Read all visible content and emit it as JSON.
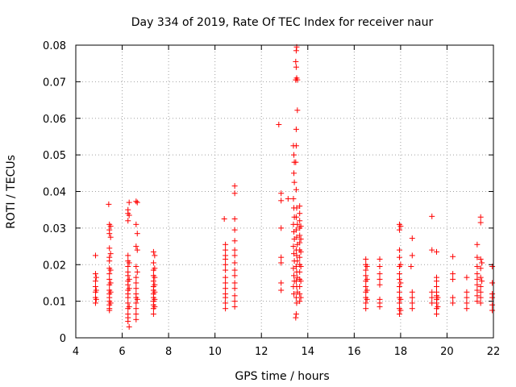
{
  "chart_data": {
    "type": "scatter",
    "title": "Day 334 of 2019, Rate Of TEC Index for receiver naur",
    "xlabel": "GPS time / hours",
    "ylabel": "ROTI / TECUs",
    "xlim": [
      4,
      22
    ],
    "ylim": [
      0,
      0.08
    ],
    "grid": true,
    "marker": "+",
    "marker_color": "#ff0000",
    "x_ticks": [
      4,
      6,
      8,
      10,
      12,
      14,
      16,
      18,
      20,
      22
    ],
    "x_tick_labels": [
      "4",
      "6",
      "8",
      "10",
      "12",
      "14",
      "16",
      "18",
      "20",
      "22"
    ],
    "y_ticks": [
      0,
      0.01,
      0.02,
      0.03,
      0.04,
      0.05,
      0.06,
      0.07,
      0.08
    ],
    "y_tick_labels": [
      "0",
      "0.01",
      "0.02",
      "0.03",
      "0.04",
      "0.05",
      "0.06",
      "0.07",
      "0.08"
    ],
    "series": [
      {
        "name": "ROTI",
        "points": [
          [
            4.85,
            0.0225
          ],
          [
            4.85,
            0.0175
          ],
          [
            4.85,
            0.0155
          ],
          [
            4.85,
            0.014
          ],
          [
            4.85,
            0.0125
          ],
          [
            4.85,
            0.011
          ],
          [
            4.85,
            0.0095
          ],
          [
            4.88,
            0.0165
          ],
          [
            4.88,
            0.013
          ],
          [
            4.88,
            0.0105
          ],
          [
            5.42,
            0.0365
          ],
          [
            5.45,
            0.031
          ],
          [
            5.45,
            0.0295
          ],
          [
            5.45,
            0.0285
          ],
          [
            5.45,
            0.0245
          ],
          [
            5.45,
            0.022
          ],
          [
            5.45,
            0.021
          ],
          [
            5.45,
            0.019
          ],
          [
            5.45,
            0.0175
          ],
          [
            5.45,
            0.016
          ],
          [
            5.45,
            0.0145
          ],
          [
            5.45,
            0.013
          ],
          [
            5.45,
            0.012
          ],
          [
            5.45,
            0.011
          ],
          [
            5.45,
            0.01
          ],
          [
            5.45,
            0.009
          ],
          [
            5.45,
            0.008
          ],
          [
            5.45,
            0.0075
          ],
          [
            5.5,
            0.0305
          ],
          [
            5.5,
            0.0275
          ],
          [
            5.5,
            0.023
          ],
          [
            5.5,
            0.0185
          ],
          [
            5.5,
            0.015
          ],
          [
            5.5,
            0.0125
          ],
          [
            5.5,
            0.0095
          ],
          [
            6.25,
            0.035
          ],
          [
            6.25,
            0.034
          ],
          [
            6.25,
            0.032
          ],
          [
            6.25,
            0.0225
          ],
          [
            6.25,
            0.021
          ],
          [
            6.25,
            0.0195
          ],
          [
            6.25,
            0.018
          ],
          [
            6.25,
            0.017
          ],
          [
            6.25,
            0.0155
          ],
          [
            6.25,
            0.0145
          ],
          [
            6.25,
            0.013
          ],
          [
            6.25,
            0.012
          ],
          [
            6.25,
            0.011
          ],
          [
            6.25,
            0.0095
          ],
          [
            6.25,
            0.008
          ],
          [
            6.25,
            0.0065
          ],
          [
            6.25,
            0.0055
          ],
          [
            6.25,
            0.0045
          ],
          [
            6.3,
            0.037
          ],
          [
            6.3,
            0.0335
          ],
          [
            6.3,
            0.0205
          ],
          [
            6.3,
            0.016
          ],
          [
            6.3,
            0.0135
          ],
          [
            6.3,
            0.0085
          ],
          [
            6.3,
            0.003
          ],
          [
            6.6,
            0.0373
          ],
          [
            6.65,
            0.037
          ],
          [
            6.6,
            0.031
          ],
          [
            6.6,
            0.025
          ],
          [
            6.6,
            0.0195
          ],
          [
            6.6,
            0.0165
          ],
          [
            6.6,
            0.015
          ],
          [
            6.6,
            0.0135
          ],
          [
            6.6,
            0.012
          ],
          [
            6.6,
            0.011
          ],
          [
            6.6,
            0.0095
          ],
          [
            6.6,
            0.008
          ],
          [
            6.6,
            0.0065
          ],
          [
            6.6,
            0.005
          ],
          [
            6.65,
            0.0285
          ],
          [
            6.65,
            0.024
          ],
          [
            6.65,
            0.018
          ],
          [
            6.65,
            0.0105
          ],
          [
            7.35,
            0.0235
          ],
          [
            7.35,
            0.0205
          ],
          [
            7.35,
            0.0185
          ],
          [
            7.35,
            0.017
          ],
          [
            7.35,
            0.0155
          ],
          [
            7.35,
            0.014
          ],
          [
            7.35,
            0.013
          ],
          [
            7.35,
            0.012
          ],
          [
            7.35,
            0.011
          ],
          [
            7.35,
            0.01
          ],
          [
            7.35,
            0.009
          ],
          [
            7.35,
            0.008
          ],
          [
            7.35,
            0.0065
          ],
          [
            7.4,
            0.0225
          ],
          [
            7.4,
            0.019
          ],
          [
            7.4,
            0.0165
          ],
          [
            7.4,
            0.0145
          ],
          [
            7.4,
            0.0125
          ],
          [
            7.4,
            0.0105
          ],
          [
            7.4,
            0.0085
          ],
          [
            10.4,
            0.0325
          ],
          [
            10.45,
            0.0255
          ],
          [
            10.45,
            0.024
          ],
          [
            10.45,
            0.0225
          ],
          [
            10.45,
            0.0215
          ],
          [
            10.45,
            0.02
          ],
          [
            10.45,
            0.0185
          ],
          [
            10.45,
            0.0165
          ],
          [
            10.45,
            0.015
          ],
          [
            10.45,
            0.0135
          ],
          [
            10.45,
            0.012
          ],
          [
            10.45,
            0.011
          ],
          [
            10.45,
            0.0095
          ],
          [
            10.45,
            0.008
          ],
          [
            10.85,
            0.0415
          ],
          [
            10.85,
            0.0395
          ],
          [
            10.85,
            0.0325
          ],
          [
            10.85,
            0.0295
          ],
          [
            10.85,
            0.0265
          ],
          [
            10.85,
            0.024
          ],
          [
            10.85,
            0.0225
          ],
          [
            10.85,
            0.0205
          ],
          [
            10.85,
            0.0185
          ],
          [
            10.85,
            0.017
          ],
          [
            10.85,
            0.015
          ],
          [
            10.85,
            0.0135
          ],
          [
            10.85,
            0.0115
          ],
          [
            10.85,
            0.01
          ],
          [
            10.85,
            0.0085
          ],
          [
            12.75,
            0.0583
          ],
          [
            12.85,
            0.0395
          ],
          [
            12.85,
            0.0375
          ],
          [
            12.85,
            0.03
          ],
          [
            12.85,
            0.022
          ],
          [
            12.85,
            0.0205
          ],
          [
            12.85,
            0.015
          ],
          [
            12.85,
            0.013
          ],
          [
            13.15,
            0.038
          ],
          [
            13.38,
            0.0525
          ],
          [
            13.4,
            0.05
          ],
          [
            13.42,
            0.048
          ],
          [
            13.4,
            0.045
          ],
          [
            13.42,
            0.0425
          ],
          [
            13.38,
            0.038
          ],
          [
            13.4,
            0.0355
          ],
          [
            13.42,
            0.033
          ],
          [
            13.38,
            0.031
          ],
          [
            13.4,
            0.029
          ],
          [
            13.42,
            0.027
          ],
          [
            13.38,
            0.025
          ],
          [
            13.4,
            0.023
          ],
          [
            13.42,
            0.021
          ],
          [
            13.38,
            0.019
          ],
          [
            13.4,
            0.017
          ],
          [
            13.42,
            0.0155
          ],
          [
            13.38,
            0.014
          ],
          [
            13.4,
            0.012
          ],
          [
            13.5,
            0.0785
          ],
          [
            13.52,
            0.0795
          ],
          [
            13.48,
            0.0755
          ],
          [
            13.5,
            0.074
          ],
          [
            13.52,
            0.071
          ],
          [
            13.48,
            0.0705
          ],
          [
            13.55,
            0.0705
          ],
          [
            13.55,
            0.0622
          ],
          [
            13.5,
            0.057
          ],
          [
            13.5,
            0.0525
          ],
          [
            13.48,
            0.048
          ],
          [
            13.5,
            0.0405
          ],
          [
            13.52,
            0.0355
          ],
          [
            13.5,
            0.033
          ],
          [
            13.55,
            0.031
          ],
          [
            13.5,
            0.0295
          ],
          [
            13.52,
            0.0275
          ],
          [
            13.55,
            0.0255
          ],
          [
            13.5,
            0.024
          ],
          [
            13.52,
            0.0225
          ],
          [
            13.55,
            0.021
          ],
          [
            13.5,
            0.0195
          ],
          [
            13.52,
            0.018
          ],
          [
            13.55,
            0.0165
          ],
          [
            13.5,
            0.0155
          ],
          [
            13.52,
            0.014
          ],
          [
            13.55,
            0.0125
          ],
          [
            13.5,
            0.011
          ],
          [
            13.52,
            0.0095
          ],
          [
            13.5,
            0.0065
          ],
          [
            13.48,
            0.0055
          ],
          [
            13.65,
            0.036
          ],
          [
            13.65,
            0.034
          ],
          [
            13.65,
            0.032
          ],
          [
            13.65,
            0.03
          ],
          [
            13.65,
            0.028
          ],
          [
            13.65,
            0.026
          ],
          [
            13.65,
            0.024
          ],
          [
            13.65,
            0.022
          ],
          [
            13.65,
            0.02
          ],
          [
            13.65,
            0.018
          ],
          [
            13.65,
            0.016
          ],
          [
            13.65,
            0.014
          ],
          [
            13.65,
            0.012
          ],
          [
            13.65,
            0.01
          ],
          [
            13.7,
            0.0305
          ],
          [
            13.7,
            0.027
          ],
          [
            13.7,
            0.0235
          ],
          [
            13.7,
            0.0195
          ],
          [
            13.7,
            0.0155
          ],
          [
            13.7,
            0.011
          ],
          [
            16.5,
            0.0215
          ],
          [
            16.5,
            0.02
          ],
          [
            16.5,
            0.0185
          ],
          [
            16.5,
            0.017
          ],
          [
            16.5,
            0.0155
          ],
          [
            16.5,
            0.014
          ],
          [
            16.5,
            0.0125
          ],
          [
            16.5,
            0.011
          ],
          [
            16.5,
            0.0095
          ],
          [
            16.5,
            0.008
          ],
          [
            16.55,
            0.0195
          ],
          [
            16.55,
            0.016
          ],
          [
            16.55,
            0.013
          ],
          [
            16.55,
            0.0105
          ],
          [
            17.1,
            0.0215
          ],
          [
            17.1,
            0.0195
          ],
          [
            17.1,
            0.0175
          ],
          [
            17.1,
            0.016
          ],
          [
            17.1,
            0.0145
          ],
          [
            17.1,
            0.0105
          ],
          [
            17.1,
            0.0095
          ],
          [
            17.1,
            0.0085
          ],
          [
            17.95,
            0.031
          ],
          [
            17.95,
            0.0295
          ],
          [
            17.95,
            0.024
          ],
          [
            17.95,
            0.022
          ],
          [
            17.95,
            0.0195
          ],
          [
            17.95,
            0.0175
          ],
          [
            17.95,
            0.016
          ],
          [
            17.95,
            0.014
          ],
          [
            17.95,
            0.0125
          ],
          [
            17.95,
            0.011
          ],
          [
            17.95,
            0.0095
          ],
          [
            17.95,
            0.008
          ],
          [
            17.95,
            0.0065
          ],
          [
            18.0,
            0.0305
          ],
          [
            18.0,
            0.02
          ],
          [
            18.0,
            0.015
          ],
          [
            18.0,
            0.0105
          ],
          [
            18.0,
            0.0075
          ],
          [
            18.5,
            0.0272
          ],
          [
            18.5,
            0.0225
          ],
          [
            18.45,
            0.0195
          ],
          [
            18.5,
            0.0125
          ],
          [
            18.5,
            0.011
          ],
          [
            18.5,
            0.0095
          ],
          [
            18.5,
            0.008
          ],
          [
            19.35,
            0.0332
          ],
          [
            19.35,
            0.024
          ],
          [
            19.35,
            0.0125
          ],
          [
            19.35,
            0.011
          ],
          [
            19.35,
            0.0095
          ],
          [
            19.55,
            0.0235
          ],
          [
            19.55,
            0.0165
          ],
          [
            19.55,
            0.0155
          ],
          [
            19.55,
            0.014
          ],
          [
            19.55,
            0.0125
          ],
          [
            19.55,
            0.0115
          ],
          [
            19.55,
            0.0105
          ],
          [
            19.55,
            0.0095
          ],
          [
            19.55,
            0.008
          ],
          [
            19.55,
            0.0065
          ],
          [
            19.6,
            0.011
          ],
          [
            19.6,
            0.0085
          ],
          [
            20.25,
            0.0222
          ],
          [
            20.25,
            0.0175
          ],
          [
            20.25,
            0.016
          ],
          [
            20.25,
            0.011
          ],
          [
            20.25,
            0.0095
          ],
          [
            20.85,
            0.0165
          ],
          [
            20.85,
            0.0125
          ],
          [
            20.85,
            0.011
          ],
          [
            20.85,
            0.0095
          ],
          [
            20.85,
            0.008
          ],
          [
            21.3,
            0.0255
          ],
          [
            21.3,
            0.022
          ],
          [
            21.3,
            0.0195
          ],
          [
            21.3,
            0.0175
          ],
          [
            21.3,
            0.016
          ],
          [
            21.3,
            0.0145
          ],
          [
            21.3,
            0.013
          ],
          [
            21.3,
            0.0115
          ],
          [
            21.3,
            0.01
          ],
          [
            21.45,
            0.033
          ],
          [
            21.45,
            0.0315
          ],
          [
            21.45,
            0.0215
          ],
          [
            21.45,
            0.019
          ],
          [
            21.45,
            0.0165
          ],
          [
            21.45,
            0.014
          ],
          [
            21.45,
            0.0125
          ],
          [
            21.45,
            0.011
          ],
          [
            21.45,
            0.0095
          ],
          [
            21.5,
            0.0205
          ],
          [
            21.5,
            0.0155
          ],
          [
            21.95,
            0.0195
          ],
          [
            21.95,
            0.015
          ],
          [
            21.95,
            0.012
          ],
          [
            21.95,
            0.011
          ],
          [
            21.95,
            0.009
          ],
          [
            21.95,
            0.0075
          ]
        ]
      }
    ]
  }
}
